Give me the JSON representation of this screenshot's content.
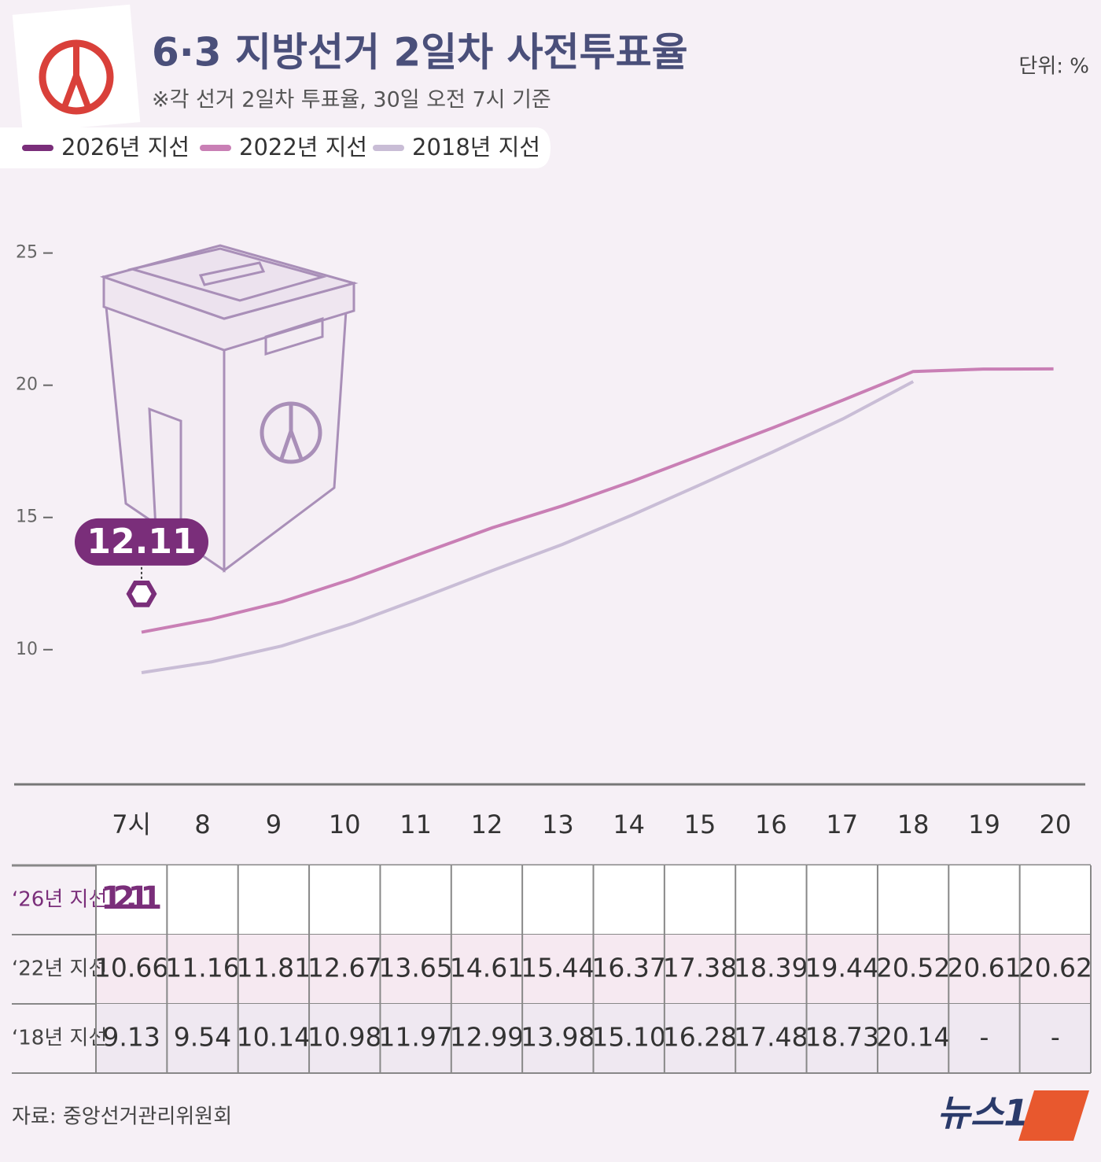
{
  "chart_data": {
    "type": "line",
    "title": "6·3 지방선거 2일차 사전투표율",
    "subtitle": "※각 선거 2일차 투표율, 30일 오전 7시 기준",
    "unit": "단위: %",
    "categories": [
      "7시",
      "8",
      "9",
      "10",
      "11",
      "12",
      "13",
      "14",
      "15",
      "16",
      "17",
      "18",
      "19",
      "20"
    ],
    "series": [
      {
        "name": "2026년 지선",
        "color": "#7a2e7a",
        "values": [
          12.11,
          null,
          null,
          null,
          null,
          null,
          null,
          null,
          null,
          null,
          null,
          null,
          null,
          null
        ],
        "value_labels": [
          "12.11",
          null,
          null,
          null,
          null,
          null,
          null,
          null,
          null,
          null,
          null,
          null,
          null,
          null
        ]
      },
      {
        "name": "2022년 지선",
        "color": "#c97fb5",
        "values": [
          10.66,
          11.16,
          11.81,
          12.67,
          13.65,
          14.61,
          15.44,
          16.37,
          17.38,
          18.39,
          19.44,
          20.52,
          20.61,
          20.62
        ],
        "value_labels": [
          "10.66",
          "11.16",
          "11.81",
          "12.67",
          "13.65",
          "14.61",
          "15.44",
          "16.37",
          "17.38",
          "18.39",
          "19.44",
          "20.52",
          "20.61",
          "20.62"
        ]
      },
      {
        "name": "2018년 지선",
        "color": "#c9bdd6",
        "values": [
          9.13,
          9.54,
          10.14,
          10.98,
          11.97,
          12.99,
          13.98,
          15.1,
          16.28,
          17.48,
          18.73,
          20.14,
          null,
          null
        ],
        "value_labels": [
          "9.13",
          "9.54",
          "10.14",
          "10.98",
          "11.97",
          "12.99",
          "13.98",
          "15.10",
          "16.28",
          "17.48",
          "18.73",
          "20.14",
          "-",
          "-"
        ]
      }
    ],
    "row_labels": [
      "‘26년 지선",
      "‘22년 지선",
      "‘18년 지선"
    ],
    "ylim": [
      8,
      26
    ],
    "yticks": [
      10,
      15,
      20,
      25
    ],
    "source": "자료: 중앙선거관리위원회",
    "logo": "뉴스1"
  }
}
